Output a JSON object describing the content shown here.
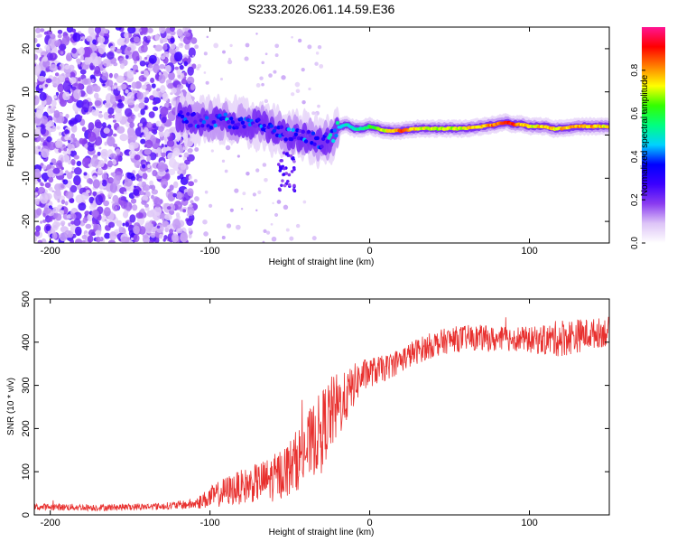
{
  "title": "S233.2026.061.14.59.E36",
  "chart_data": [
    {
      "type": "heatmap",
      "xlabel": "Height of straight line (km)",
      "ylabel": "Frequency (Hz)",
      "xlim": [
        -210,
        150
      ],
      "ylim": [
        -25,
        25
      ],
      "xticks": [
        -200,
        -100,
        0,
        100
      ],
      "yticks": [
        -20,
        -10,
        0,
        10,
        20
      ],
      "colorbar": {
        "label": "Normalized spectral amplitude",
        "ticks": [
          "0.0",
          "0.2",
          "0.4",
          "0.6",
          "0.8"
        ],
        "tick_values": [
          0.0,
          0.2,
          0.4,
          0.6,
          0.8
        ],
        "range": [
          0,
          1
        ],
        "colors": [
          "#ffffff",
          "#ddc4f7",
          "#8a3cf0",
          "#3b00ff",
          "#0000ff",
          "#00d2ff",
          "#00ff80",
          "#33ff00",
          "#ffff00",
          "#ff8000",
          "#ff0000",
          "#ff1493"
        ]
      },
      "ridge": {
        "x": [
          -120,
          -110,
          -100,
          -90,
          -80,
          -70,
          -60,
          -50,
          -40,
          -35,
          -30,
          -25,
          -20,
          -15,
          -10,
          -5,
          0,
          5,
          10,
          20,
          30,
          40,
          50,
          60,
          70,
          80,
          85,
          90,
          95,
          100,
          105,
          110,
          115,
          120,
          130,
          140,
          150
        ],
        "freq": [
          4,
          3.5,
          3,
          3.5,
          2.5,
          2.5,
          1,
          0,
          -0.5,
          -1,
          -1.5,
          -1,
          1.5,
          2.5,
          1.5,
          1.5,
          2,
          1.5,
          1,
          1,
          1.5,
          1.5,
          1.5,
          1.5,
          2,
          2.5,
          3,
          2.5,
          2.5,
          2,
          2,
          2,
          1.5,
          1.5,
          2,
          2,
          2
        ],
        "amp": [
          0.3,
          0.35,
          0.35,
          0.4,
          0.35,
          0.35,
          0.3,
          0.35,
          0.35,
          0.35,
          0.3,
          0.4,
          0.45,
          0.5,
          0.5,
          0.55,
          0.6,
          0.65,
          0.75,
          0.85,
          0.75,
          0.7,
          0.7,
          0.75,
          0.8,
          0.85,
          0.95,
          0.9,
          0.8,
          0.75,
          0.75,
          0.8,
          0.75,
          0.8,
          0.8,
          0.8,
          0.75
        ]
      },
      "noise_region_x": [
        -210,
        -120
      ]
    },
    {
      "type": "line",
      "xlabel": "Height of straight line (km)",
      "ylabel": "SNR (10 * v/v)",
      "xlim": [
        -210,
        150
      ],
      "ylim": [
        0,
        500
      ],
      "xticks": [
        -200,
        -100,
        0,
        100
      ],
      "yticks": [
        0,
        100,
        200,
        300,
        400,
        500
      ],
      "color": "#e8302e",
      "series": [
        {
          "name": "SNR",
          "x": [
            -210,
            -190,
            -170,
            -150,
            -130,
            -110,
            -100,
            -90,
            -80,
            -70,
            -60,
            -50,
            -40,
            -30,
            -25,
            -20,
            -15,
            -10,
            -5,
            0,
            10,
            20,
            30,
            40,
            50,
            60,
            70,
            80,
            90,
            100,
            110,
            120,
            130,
            140,
            150
          ],
          "y": [
            18,
            18,
            17,
            18,
            20,
            25,
            40,
            55,
            65,
            75,
            85,
            110,
            150,
            200,
            230,
            250,
            270,
            300,
            320,
            330,
            340,
            360,
            380,
            395,
            405,
            410,
            410,
            405,
            410,
            405,
            405,
            410,
            415,
            420,
            425
          ],
          "noise_amplitude": [
            8,
            8,
            8,
            8,
            8,
            12,
            25,
            35,
            40,
            45,
            55,
            65,
            80,
            90,
            90,
            80,
            60,
            50,
            40,
            35,
            30,
            30,
            30,
            30,
            30,
            30,
            30,
            30,
            30,
            30,
            35,
            45,
            40,
            35,
            35
          ]
        }
      ]
    }
  ]
}
